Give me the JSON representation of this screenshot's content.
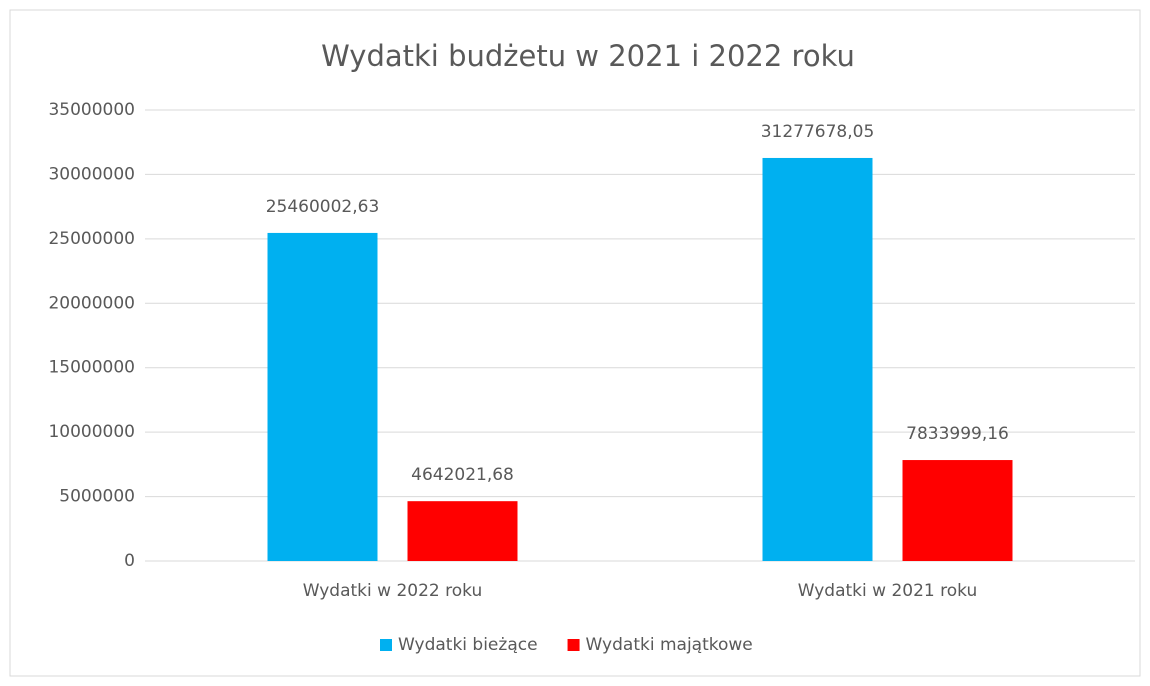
{
  "chart_data": {
    "type": "bar",
    "title": "Wydatki budżetu w 2021 i 2022 roku",
    "categories": [
      "Wydatki w 2022 roku",
      "Wydatki w 2021 roku"
    ],
    "series": [
      {
        "name": "Wydatki bieżące",
        "color": "#00b0f0",
        "values": [
          25460002.63,
          31277678.05
        ],
        "value_labels": [
          "25460002,63",
          "31277678,05"
        ]
      },
      {
        "name": "Wydatki majątkowe",
        "color": "#ff0000",
        "values": [
          4642021.68,
          7833999.16
        ],
        "value_labels": [
          "4642021,68",
          "7833999,16"
        ]
      }
    ],
    "ylim": [
      0,
      35000000
    ],
    "yticks": [
      0,
      5000000,
      10000000,
      15000000,
      20000000,
      25000000,
      30000000,
      35000000
    ],
    "grid": true,
    "legend": "bottom"
  }
}
